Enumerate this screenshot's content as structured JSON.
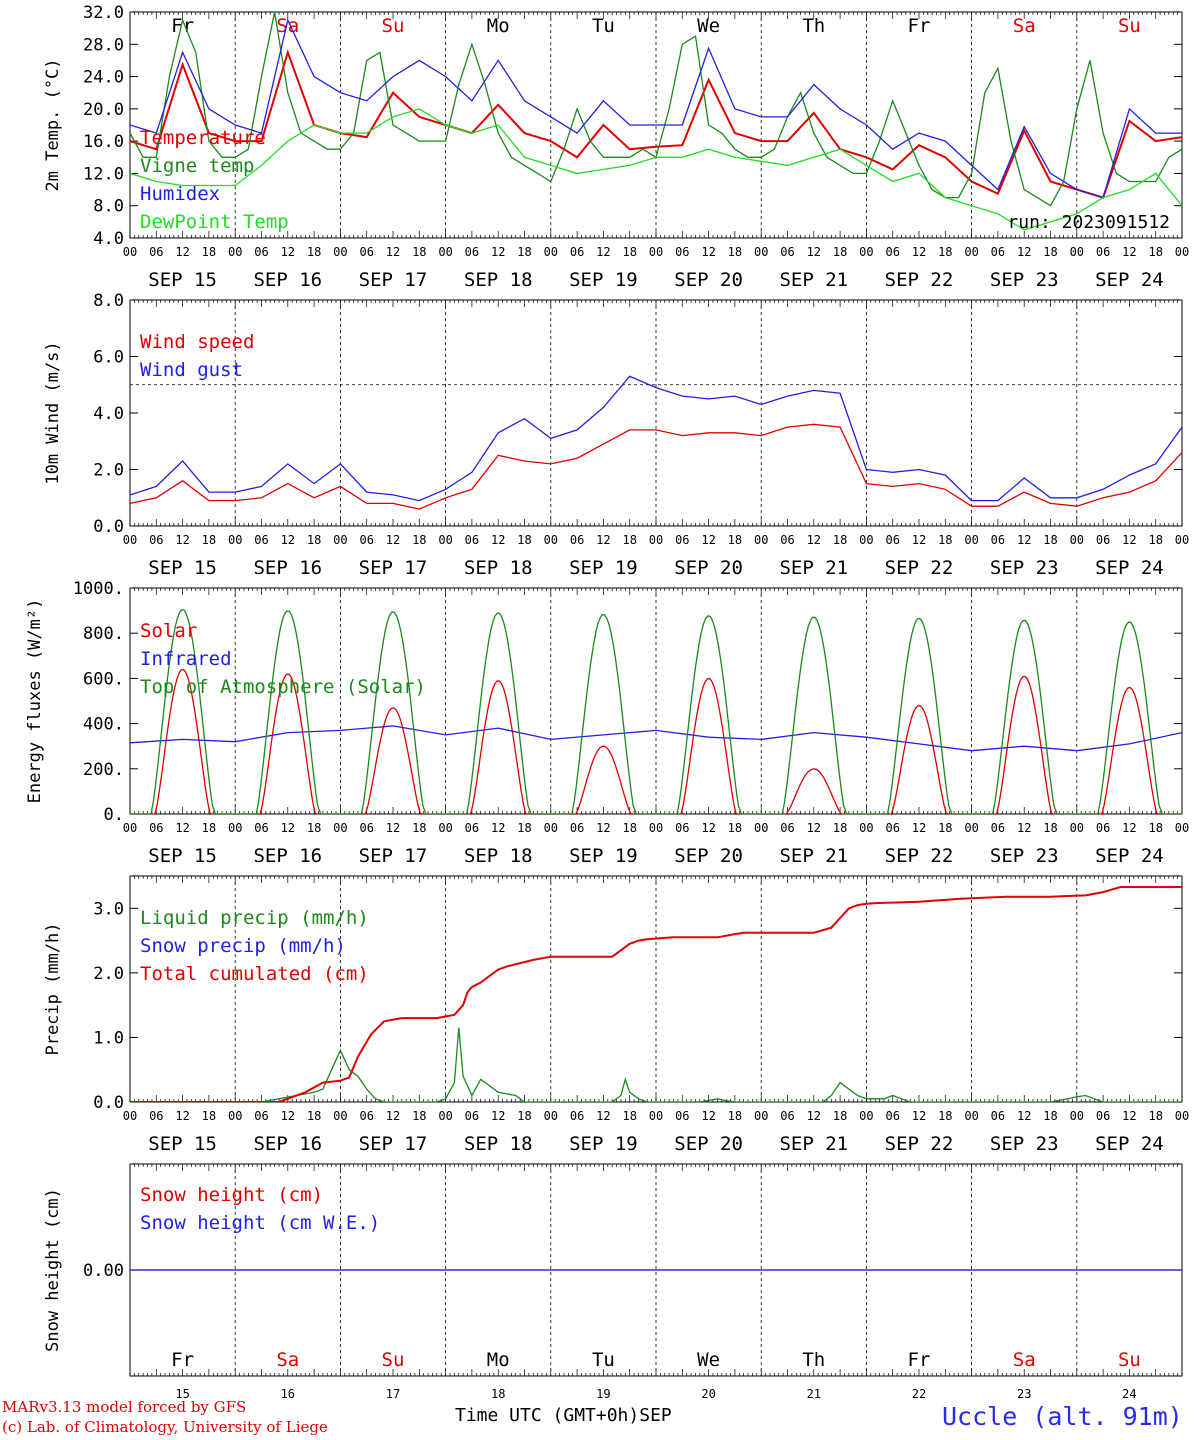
{
  "chart_data": [
    {
      "type": "line",
      "ylabel": "2m Temp. (°C)",
      "ylim": [
        4,
        32
      ],
      "y_ticks": [
        "4.0",
        "8.0",
        "12.0",
        "16.0",
        "20.0",
        "24.0",
        "28.0",
        "32.0"
      ],
      "legend_placement": "left",
      "annotation": "run: 2023091512",
      "series": [
        {
          "name": "Temperature",
          "color": "#e00000",
          "x": [
            0,
            6,
            12,
            18,
            24,
            30,
            36,
            42,
            48,
            54,
            60,
            66,
            72,
            78,
            84,
            90,
            96,
            102,
            108,
            114,
            120,
            126,
            132,
            138,
            144,
            150,
            156,
            162,
            168,
            174,
            180,
            186,
            192,
            198,
            204,
            210,
            216,
            222,
            228,
            234,
            240
          ],
          "y": [
            16,
            15,
            25.5,
            17,
            16,
            16,
            27,
            18,
            17,
            16.5,
            22,
            19,
            18,
            17,
            20.5,
            17,
            16,
            14,
            18,
            15,
            15.3,
            15.5,
            23.6,
            17,
            16,
            16,
            19.5,
            15,
            14,
            12.5,
            15.5,
            14,
            11,
            9.5,
            17.3,
            11,
            10,
            9,
            18.5,
            16,
            16.5
          ]
        },
        {
          "name": "Vigne temp",
          "color": "#1a8a1a",
          "x": [
            0,
            3,
            6,
            9,
            12,
            15,
            18,
            21,
            24,
            27,
            30,
            33,
            36,
            39,
            42,
            45,
            48,
            51,
            54,
            57,
            60,
            63,
            66,
            69,
            72,
            75,
            78,
            81,
            84,
            87,
            90,
            93,
            96,
            99,
            102,
            105,
            108,
            111,
            114,
            117,
            120,
            123,
            126,
            129,
            132,
            135,
            138,
            141,
            144,
            147,
            150,
            153,
            156,
            159,
            162,
            165,
            168,
            171,
            174,
            177,
            180,
            183,
            186,
            189,
            192,
            195,
            198,
            201,
            204,
            207,
            210,
            213,
            216,
            219,
            222,
            225,
            228,
            231,
            234,
            237,
            240
          ],
          "y": [
            17,
            14,
            14,
            24,
            31,
            27,
            16,
            14,
            14,
            15,
            24,
            32,
            22,
            17,
            16,
            15,
            15,
            17,
            26,
            27,
            18,
            17,
            16,
            16,
            16,
            23,
            28,
            23,
            17,
            14,
            13,
            12,
            11,
            15,
            20,
            16,
            14,
            14,
            14,
            15,
            14,
            20,
            28,
            29,
            18,
            17,
            15,
            14,
            14,
            15,
            19,
            22,
            17,
            14,
            13,
            12,
            12,
            16,
            21,
            17,
            13,
            10,
            9,
            9,
            12,
            22,
            25,
            16,
            10,
            9,
            8,
            11,
            20,
            26,
            17,
            12,
            11,
            11,
            11,
            14,
            15
          ]
        },
        {
          "name": "Humidex",
          "color": "#2020e0",
          "x": [
            0,
            6,
            12,
            18,
            24,
            30,
            36,
            42,
            48,
            54,
            60,
            66,
            72,
            78,
            84,
            90,
            96,
            102,
            108,
            114,
            120,
            126,
            132,
            138,
            144,
            150,
            156,
            162,
            168,
            174,
            180,
            186,
            192,
            198,
            204,
            210,
            216,
            222,
            228,
            234,
            240
          ],
          "y": [
            18,
            17,
            27,
            20,
            18,
            17,
            31,
            24,
            22,
            21,
            24,
            26,
            24,
            21,
            26,
            21,
            19,
            17,
            21,
            18,
            18,
            18,
            27.5,
            20,
            19,
            19,
            23,
            20,
            18,
            15,
            17,
            16,
            13,
            10,
            17.8,
            12,
            10,
            9,
            20,
            17,
            17
          ]
        },
        {
          "name": "DewPoint Temp",
          "color": "#22dd22",
          "x": [
            0,
            6,
            12,
            18,
            24,
            30,
            36,
            42,
            48,
            54,
            60,
            66,
            72,
            78,
            84,
            90,
            96,
            102,
            108,
            114,
            120,
            126,
            132,
            138,
            144,
            150,
            156,
            162,
            168,
            174,
            180,
            186,
            192,
            198,
            204,
            210,
            216,
            222,
            228,
            234,
            240
          ],
          "y": [
            12,
            11,
            10.5,
            10.5,
            10.5,
            13,
            16,
            18,
            17,
            17,
            19,
            20,
            18,
            17,
            18,
            14,
            13,
            12,
            12.5,
            13,
            14,
            14,
            15,
            14,
            13.5,
            13,
            14,
            15,
            13,
            11,
            12,
            9,
            8,
            7,
            5,
            6,
            7,
            9,
            10,
            12,
            8
          ]
        }
      ]
    },
    {
      "type": "line",
      "ylabel": "10m Wind (m/s)",
      "ylim": [
        0,
        8
      ],
      "y_ticks": [
        "0.0",
        "2.0",
        "4.0",
        "6.0",
        "8.0"
      ],
      "reference_line": 5,
      "legend_placement": "left",
      "series": [
        {
          "name": "Wind speed",
          "color": "#e00000",
          "x": [
            0,
            6,
            12,
            18,
            24,
            30,
            36,
            42,
            48,
            54,
            60,
            66,
            72,
            78,
            84,
            90,
            96,
            102,
            108,
            114,
            120,
            126,
            132,
            138,
            144,
            150,
            156,
            162,
            168,
            174,
            180,
            186,
            192,
            198,
            204,
            210,
            216,
            222,
            228,
            234,
            240
          ],
          "y": [
            0.8,
            1.0,
            1.6,
            0.9,
            0.9,
            1.0,
            1.5,
            1.0,
            1.4,
            0.8,
            0.8,
            0.6,
            1.0,
            1.3,
            2.5,
            2.3,
            2.2,
            2.4,
            2.9,
            3.4,
            3.4,
            3.2,
            3.3,
            3.3,
            3.2,
            3.5,
            3.6,
            3.5,
            1.5,
            1.4,
            1.5,
            1.3,
            0.7,
            0.7,
            1.2,
            0.8,
            0.7,
            1.0,
            1.2,
            1.6,
            2.6
          ]
        },
        {
          "name": "Wind gust",
          "color": "#2020e0",
          "x": [
            0,
            6,
            12,
            18,
            24,
            30,
            36,
            42,
            48,
            54,
            60,
            66,
            72,
            78,
            84,
            90,
            96,
            102,
            108,
            114,
            120,
            126,
            132,
            138,
            144,
            150,
            156,
            162,
            168,
            174,
            180,
            186,
            192,
            198,
            204,
            210,
            216,
            222,
            228,
            234,
            240
          ],
          "y": [
            1.1,
            1.4,
            2.3,
            1.2,
            1.2,
            1.4,
            2.2,
            1.5,
            2.2,
            1.2,
            1.1,
            0.9,
            1.3,
            1.9,
            3.3,
            3.8,
            3.1,
            3.4,
            4.2,
            5.3,
            4.9,
            4.6,
            4.5,
            4.6,
            4.3,
            4.6,
            4.8,
            4.7,
            2.0,
            1.9,
            2.0,
            1.8,
            0.9,
            0.9,
            1.7,
            1.0,
            1.0,
            1.3,
            1.8,
            2.2,
            3.5
          ]
        }
      ]
    },
    {
      "type": "line",
      "ylabel": "Energy fluxes (W/m²)",
      "ylim": [
        0,
        1000
      ],
      "y_ticks": [
        "0.",
        "200.",
        "400.",
        "600.",
        "800.",
        "1000."
      ],
      "legend_placement": "left",
      "solar_peaks": [
        640,
        620,
        470,
        590,
        300,
        600,
        200,
        480,
        610,
        560
      ],
      "toa_peaks": [
        905,
        900,
        895,
        890,
        883,
        877,
        872,
        866,
        858,
        850
      ],
      "series": [
        {
          "name": "Solar",
          "color": "#e00000"
        },
        {
          "name": "Infrared",
          "color": "#2020e0",
          "x": [
            0,
            12,
            24,
            36,
            48,
            60,
            72,
            84,
            96,
            108,
            120,
            132,
            144,
            156,
            168,
            180,
            192,
            204,
            216,
            228,
            240
          ],
          "y": [
            315,
            330,
            320,
            360,
            370,
            390,
            350,
            380,
            330,
            350,
            370,
            340,
            330,
            360,
            340,
            310,
            280,
            300,
            280,
            310,
            360
          ]
        },
        {
          "name": "Top of Atmosphere (Solar)",
          "color": "#1a8a1a"
        }
      ]
    },
    {
      "type": "line",
      "ylabel": "Precip (mm/h)",
      "ylim": [
        0,
        3.5
      ],
      "y_ticks": [
        "0.0",
        "1.0",
        "2.0",
        "3.0"
      ],
      "legend_placement": "left",
      "series": [
        {
          "name": "Liquid precip (mm/h)",
          "color": "#1a8a1a",
          "x": [
            0,
            30,
            34,
            38,
            42,
            44,
            46,
            48,
            50,
            52,
            54,
            56,
            58,
            60,
            70,
            72,
            74,
            75,
            76,
            78,
            80,
            84,
            88,
            90,
            96,
            110,
            112,
            113,
            114,
            116,
            118,
            130,
            134,
            136,
            138,
            150,
            158,
            160,
            162,
            164,
            166,
            168,
            172,
            174,
            176,
            178,
            180,
            190,
            200,
            210,
            214,
            216,
            218,
            220,
            222,
            240
          ],
          "y": [
            0,
            0,
            0.05,
            0.1,
            0.15,
            0.2,
            0.5,
            0.8,
            0.5,
            0.4,
            0.2,
            0.05,
            0,
            0,
            0,
            0.05,
            0.3,
            1.15,
            0.4,
            0.1,
            0.35,
            0.15,
            0.1,
            0,
            0,
            0,
            0.1,
            0.35,
            0.15,
            0.05,
            0,
            0,
            0.05,
            0.02,
            0,
            0,
            0,
            0.1,
            0.3,
            0.2,
            0.1,
            0.05,
            0.05,
            0.1,
            0.05,
            0,
            0,
            0,
            0,
            0,
            0.05,
            0.08,
            0.1,
            0.05,
            0,
            0
          ]
        },
        {
          "name": "Snow precip (mm/h)",
          "color": "#2020e0"
        },
        {
          "name": "Total cumulated (cm)",
          "color": "#e00000",
          "x": [
            0,
            34,
            40,
            44,
            48,
            50,
            52,
            55,
            58,
            62,
            64,
            70,
            74,
            76,
            77,
            78,
            80,
            82,
            84,
            86,
            92,
            96,
            106,
            110,
            112,
            114,
            116,
            118,
            124,
            134,
            138,
            140,
            150,
            156,
            160,
            162,
            164,
            166,
            168,
            170,
            180,
            190,
            200,
            210,
            214,
            218,
            222,
            226,
            240
          ],
          "y": [
            0,
            0,
            0.15,
            0.3,
            0.33,
            0.38,
            0.7,
            1.05,
            1.25,
            1.3,
            1.3,
            1.3,
            1.35,
            1.5,
            1.7,
            1.78,
            1.85,
            1.95,
            2.05,
            2.1,
            2.2,
            2.25,
            2.25,
            2.25,
            2.35,
            2.45,
            2.5,
            2.52,
            2.55,
            2.55,
            2.6,
            2.62,
            2.62,
            2.62,
            2.7,
            2.85,
            3.0,
            3.05,
            3.07,
            3.08,
            3.1,
            3.15,
            3.18,
            3.18,
            3.19,
            3.2,
            3.25,
            3.33,
            3.33
          ]
        }
      ]
    },
    {
      "type": "line",
      "ylabel": "Snow height (cm)",
      "y_ticks": [
        "0.00"
      ],
      "legend_placement": "left",
      "series": [
        {
          "name": "Snow height (cm)",
          "color": "#e00000",
          "x": [
            0,
            240
          ],
          "y": [
            0,
            0
          ]
        },
        {
          "name": "Snow height (cm W.E.)",
          "color": "#2020e0",
          "x": [
            0,
            240
          ],
          "y": [
            0,
            0
          ]
        }
      ]
    }
  ],
  "x_axis": {
    "hours_span": 240,
    "hour_tick_labels": [
      "00",
      "06",
      "12",
      "18"
    ],
    "end_label": "00",
    "date_labels": [
      "SEP 15",
      "SEP 16",
      "SEP 17",
      "SEP 18",
      "SEP 19",
      "SEP 20",
      "SEP 21",
      "SEP 22",
      "SEP 23",
      "SEP 24"
    ],
    "day_names": [
      "Fr",
      "Sa",
      "Su",
      "Mo",
      "Tu",
      "We",
      "Th",
      "Fr",
      "Sa",
      "Su"
    ],
    "day_name_colors": [
      "#000000",
      "#e00000",
      "#e00000",
      "#000000",
      "#000000",
      "#000000",
      "#000000",
      "#000000",
      "#e00000",
      "#e00000"
    ],
    "day_numbers": [
      "15",
      "16",
      "17",
      "18",
      "19",
      "20",
      "21",
      "22",
      "23",
      "24"
    ],
    "xlabel": "Time UTC (GMT+0h)",
    "month": "SEP"
  },
  "footer": {
    "model_line": "MARv3.13 model forced by GFS",
    "credit_line": "(c) Lab. of Climatology, University of Liege",
    "station": "Uccle (alt. 91m)"
  }
}
